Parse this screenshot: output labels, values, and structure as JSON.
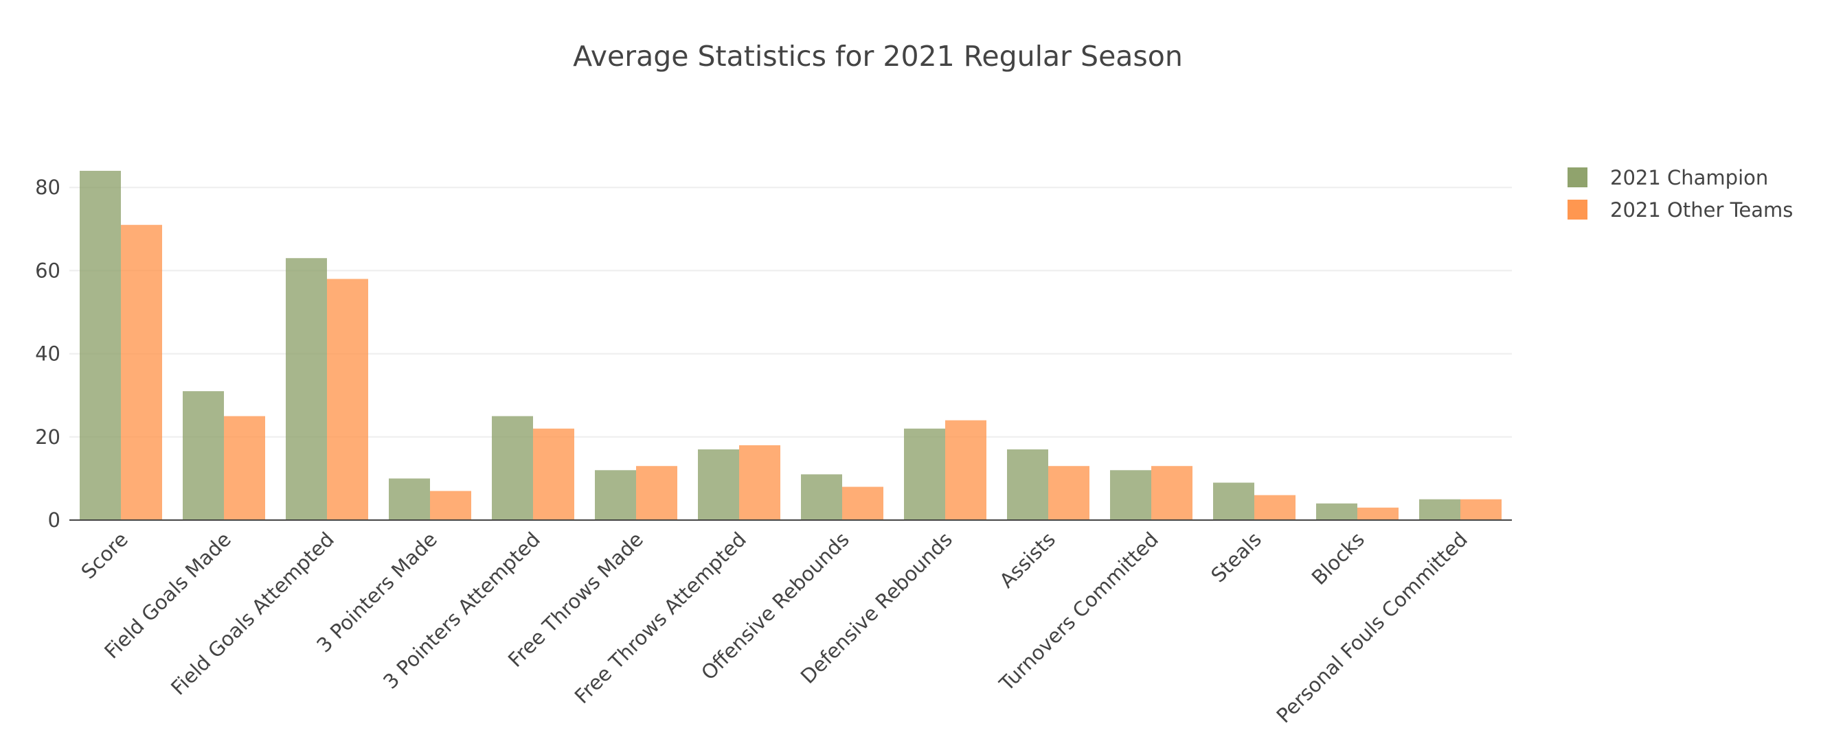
{
  "chart_data": {
    "type": "bar",
    "title": "Average Statistics for 2021 Regular Season",
    "xlabel": "",
    "ylabel": "",
    "categories": [
      "Score",
      "Field Goals Made",
      "Field Goals Attempted",
      "3 Pointers Made",
      "3 Pointers Attempted",
      "Free Throws Made",
      "Free Throws Attempted",
      "Offensive Rebounds",
      "Defensive Rebounds",
      "Assists",
      "Turnovers Committed",
      "Steals",
      "Blocks",
      "Personal Fouls Committed"
    ],
    "series": [
      {
        "name": "2021 Champion",
        "color": "#8a9e65",
        "values": [
          84,
          31,
          63,
          10,
          25,
          12,
          17,
          11,
          22,
          17,
          12,
          9,
          4,
          5
        ]
      },
      {
        "name": "2021 Other Teams",
        "color": "#ff9147",
        "values": [
          71,
          25,
          58,
          7,
          22,
          13,
          18,
          8,
          24,
          13,
          13,
          6,
          3,
          5
        ]
      }
    ],
    "ylim": [
      0,
      88
    ],
    "yticks": [
      0,
      20,
      40,
      60,
      80
    ],
    "grid": true,
    "legend_position": "top-right"
  }
}
